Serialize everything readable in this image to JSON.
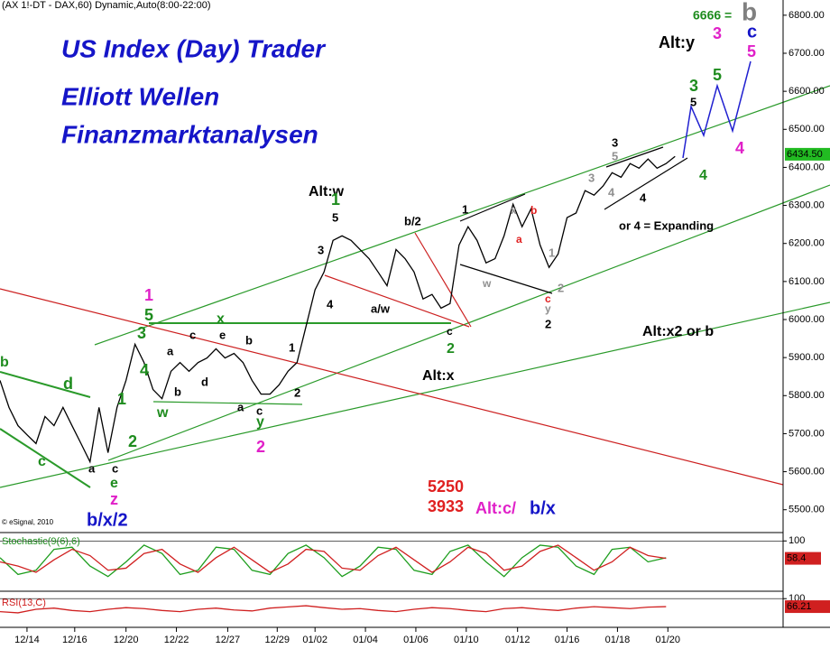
{
  "header": "(AX 1!-DT - DAX,60) Dynamic,Auto(8:00-22:00)",
  "copyright": "© eSignal, 2010",
  "titles": [
    "US Index (Day) Trader",
    "Elliott Wellen",
    "Finanzmarktanalysen"
  ],
  "annotations": [
    {
      "text": "6666 =",
      "color": "#1e8c1e"
    },
    {
      "text": "b",
      "color": "#808080"
    },
    {
      "text": "c",
      "color": "#1515c8"
    },
    {
      "text": "5",
      "color": "#e020c8"
    },
    {
      "text": "Alt:y",
      "color": "#000"
    },
    {
      "text": "3",
      "color": "#e020c8"
    },
    {
      "text": "5",
      "color": "#1e8c1e"
    },
    {
      "text": "3",
      "color": "#1e8c1e"
    },
    {
      "text": "5",
      "color": "#000"
    },
    {
      "text": "4",
      "color": "#e020c8"
    },
    {
      "text": "4",
      "color": "#1e8c1e"
    },
    {
      "text": "3",
      "color": "#000"
    },
    {
      "text": "5",
      "color": "#909090"
    },
    {
      "text": "3",
      "color": "#909090"
    },
    {
      "text": "4",
      "color": "#909090"
    },
    {
      "text": "4",
      "color": "#000"
    },
    {
      "text": "or 4 = Expanding",
      "color": "#000"
    },
    {
      "text": "Alt:w",
      "color": "#000"
    },
    {
      "text": "1",
      "color": "#1e8c1e"
    },
    {
      "text": "5",
      "color": "#000"
    },
    {
      "text": "b/2",
      "color": "#000"
    },
    {
      "text": "1",
      "color": "#000"
    },
    {
      "text": "x",
      "color": "#909090"
    },
    {
      "text": "b",
      "color": "#e02020"
    },
    {
      "text": "3",
      "color": "#000"
    },
    {
      "text": "4",
      "color": "#000"
    },
    {
      "text": "a/w",
      "color": "#000"
    },
    {
      "text": "1",
      "color": "#909090"
    },
    {
      "text": "a",
      "color": "#e02020"
    },
    {
      "text": "w",
      "color": "#909090"
    },
    {
      "text": "2",
      "color": "#909090"
    },
    {
      "text": "c",
      "color": "#e02020"
    },
    {
      "text": "y",
      "color": "#909090"
    },
    {
      "text": "2",
      "color": "#000"
    },
    {
      "text": "c",
      "color": "#000"
    },
    {
      "text": "2",
      "color": "#1e8c1e"
    },
    {
      "text": "Alt:x2 or b",
      "color": "#000"
    },
    {
      "text": "Alt:x",
      "color": "#000"
    },
    {
      "text": "1",
      "color": "#e020c8"
    },
    {
      "text": "5",
      "color": "#1e8c1e"
    },
    {
      "text": "3",
      "color": "#1e8c1e"
    },
    {
      "text": "x",
      "color": "#1e8c1e"
    },
    {
      "text": "a",
      "color": "#000"
    },
    {
      "text": "c",
      "color": "#000"
    },
    {
      "text": "e",
      "color": "#000"
    },
    {
      "text": "b",
      "color": "#000"
    },
    {
      "text": "4",
      "color": "#1e8c1e"
    },
    {
      "text": "b",
      "color": "#000"
    },
    {
      "text": "d",
      "color": "#000"
    },
    {
      "text": "1",
      "color": "#000"
    },
    {
      "text": "1",
      "color": "#1e8c1e"
    },
    {
      "text": "w",
      "color": "#1e8c1e"
    },
    {
      "text": "a",
      "color": "#000"
    },
    {
      "text": "c",
      "color": "#000"
    },
    {
      "text": "y",
      "color": "#1e8c1e"
    },
    {
      "text": "2",
      "color": "#000"
    },
    {
      "text": "2",
      "color": "#1e8c1e"
    },
    {
      "text": "2",
      "color": "#e020c8"
    },
    {
      "text": "b",
      "color": "#1e8c1e"
    },
    {
      "text": "d",
      "color": "#1e8c1e"
    },
    {
      "text": "c",
      "color": "#1e8c1e"
    },
    {
      "text": "a",
      "color": "#000"
    },
    {
      "text": "c",
      "color": "#000"
    },
    {
      "text": "e",
      "color": "#1e8c1e"
    },
    {
      "text": "z",
      "color": "#e020c8"
    },
    {
      "text": "b/x/2",
      "color": "#1515c8"
    },
    {
      "text": "5250",
      "color": "#e02020"
    },
    {
      "text": "3933",
      "color": "#e02020"
    },
    {
      "text": "Alt:c/",
      "color": "#e020c8"
    },
    {
      "text": "b/x",
      "color": "#1515c8"
    }
  ],
  "chart_data": [
    {
      "type": "line",
      "color": "#000000",
      "values": [
        5840,
        5769,
        5721,
        5697,
        5674,
        5745,
        5721,
        5769,
        5721,
        5674,
        5626,
        5769,
        5650,
        5769,
        5840,
        5935,
        5887,
        5816,
        5792,
        5864,
        5887,
        5864,
        5887,
        5899,
        5923,
        5899,
        5911,
        5887,
        5840,
        5804,
        5804,
        5828,
        5864,
        5887,
        5982,
        6078,
        6125,
        6208,
        6220,
        6208,
        6184,
        6160,
        6125,
        6089,
        6184,
        6160,
        6125,
        6054,
        6066,
        6030,
        6042,
        6196,
        6244,
        6208,
        6149,
        6160,
        6220,
        6303,
        6244,
        6291,
        6196,
        6137,
        6172,
        6268,
        6280,
        6339,
        6327,
        6351,
        6386,
        6374,
        6410,
        6398,
        6422,
        6398,
        6410,
        6429
      ],
      "xlim": [
        0,
        87
      ],
      "ylim": [
        5440,
        6840
      ],
      "yticks": [
        {
          "value": 5500,
          "label": "5500.00"
        },
        {
          "value": 5600,
          "label": "5600.00"
        },
        {
          "value": 5700,
          "label": "5700.00"
        },
        {
          "value": 5800,
          "label": "5800.00"
        },
        {
          "value": 5900,
          "label": "5900.00"
        },
        {
          "value": 6000,
          "label": "6000.00"
        },
        {
          "value": 6100,
          "label": "6100.00"
        },
        {
          "value": 6200,
          "label": "6200.00"
        },
        {
          "value": 6300,
          "label": "6300.00"
        },
        {
          "value": 6400,
          "label": "6400.00"
        },
        {
          "value": 6500,
          "label": "6500.00"
        },
        {
          "value": 6600,
          "label": "6600.00"
        },
        {
          "value": 6700,
          "label": "6700.00"
        },
        {
          "value": 6800,
          "label": "6800.00"
        }
      ],
      "xticks": [
        {
          "value": 3,
          "label": "12/14"
        },
        {
          "value": 8.3,
          "label": "12/16"
        },
        {
          "value": 14,
          "label": "12/20"
        },
        {
          "value": 19.6,
          "label": "12/22"
        },
        {
          "value": 25.3,
          "label": "12/27"
        },
        {
          "value": 30.8,
          "label": "12/29"
        },
        {
          "value": 35,
          "label": "01/02"
        },
        {
          "value": 40.6,
          "label": "01/04"
        },
        {
          "value": 46.2,
          "label": "01/06"
        },
        {
          "value": 51.8,
          "label": "01/10"
        },
        {
          "value": 57.5,
          "label": "01/12"
        },
        {
          "value": 63,
          "label": "01/16"
        },
        {
          "value": 68.6,
          "label": "01/18"
        },
        {
          "value": 74.2,
          "label": "01/20"
        }
      ],
      "last_value": 6434.5,
      "last_label": "6434.50",
      "last_color": "#22bb22"
    },
    {
      "type": "line",
      "title": "Stochastic(9(6),6)",
      "title_color": "#1e8c1e",
      "xlim": [
        0,
        43.5
      ],
      "ylim": [
        -5,
        120
      ],
      "yticks": [
        100
      ],
      "series": [
        {
          "color": "#1e9e1e",
          "values": [
            60,
            20,
            30,
            80,
            85,
            40,
            15,
            50,
            90,
            70,
            20,
            30,
            85,
            80,
            30,
            20,
            70,
            90,
            60,
            15,
            40,
            85,
            80,
            30,
            20,
            75,
            90,
            50,
            15,
            60,
            90,
            85,
            40,
            20,
            80,
            85,
            50,
            60
          ]
        },
        {
          "color": "#d02020",
          "values": [
            50,
            40,
            25,
            55,
            80,
            65,
            30,
            35,
            70,
            80,
            45,
            25,
            60,
            85,
            55,
            25,
            45,
            80,
            75,
            35,
            30,
            65,
            85,
            55,
            25,
            50,
            85,
            70,
            30,
            40,
            75,
            90,
            60,
            30,
            50,
            85,
            65,
            58.4
          ]
        }
      ]
    },
    {
      "type": "line",
      "title": "RSI(13,C)",
      "title_color": "#d02020",
      "xlim": [
        0,
        43.5
      ],
      "ylim": [
        -10,
        120
      ],
      "yticks": [
        100
      ],
      "color": "#d02020",
      "values": [
        45,
        40,
        55,
        60,
        50,
        45,
        55,
        62,
        58,
        50,
        45,
        55,
        60,
        52,
        48,
        60,
        65,
        70,
        62,
        55,
        58,
        50,
        45,
        55,
        62,
        58,
        50,
        45,
        58,
        62,
        55,
        50,
        60,
        66,
        62,
        58,
        64,
        66.21
      ]
    }
  ]
}
